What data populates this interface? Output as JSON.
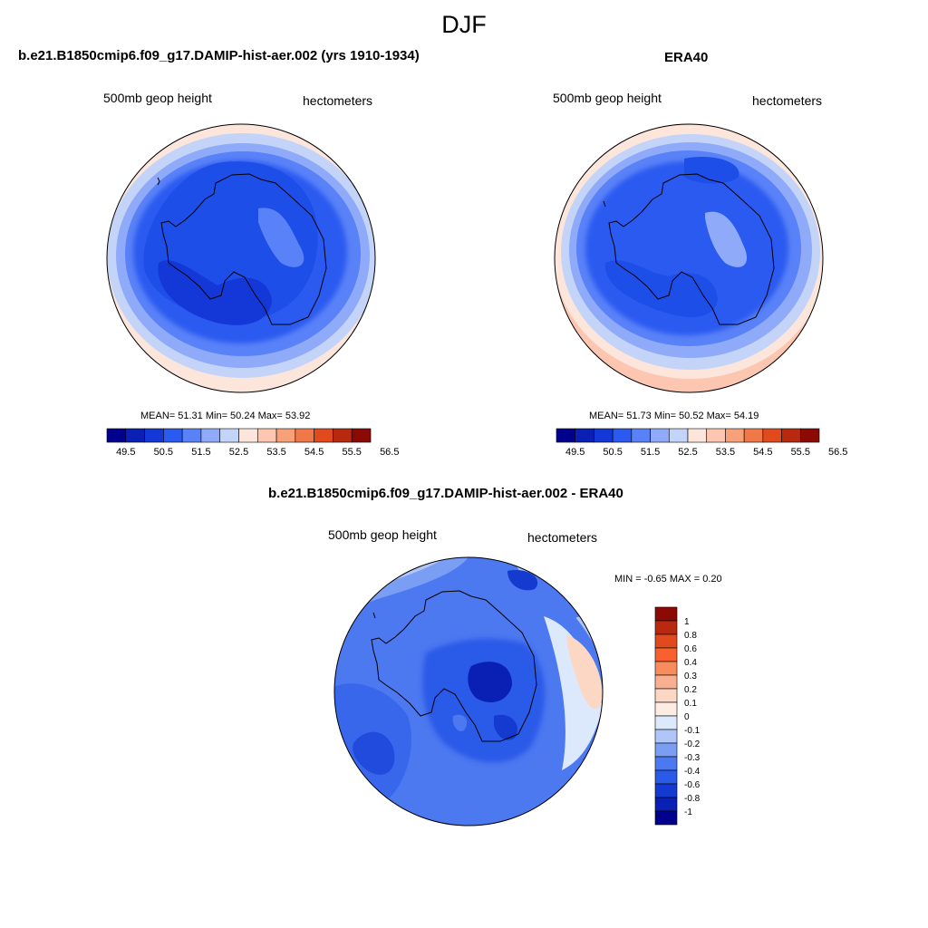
{
  "figure_title": "DJF",
  "panels": [
    {
      "title": "b.e21.B1850cmip6.f09_g17.DAMIP-hist-aer.002 (yrs 1910-1934)",
      "left_label": "500mb geop height",
      "right_label": "hectometers",
      "stats": "MEAN=  51.31  Min=  50.24  Max=  53.92",
      "mean": 51.31,
      "min": 50.24,
      "max": 53.92
    },
    {
      "title": "ERA40",
      "left_label": "500mb geop height",
      "right_label": "hectometers",
      "stats": "MEAN=  51.73  Min=  50.52  Max=  54.19",
      "mean": 51.73,
      "min": 50.52,
      "max": 54.19
    },
    {
      "title": "b.e21.B1850cmip6.f09_g17.DAMIP-hist-aer.002 - ERA40",
      "left_label": "500mb geop height",
      "right_label": "hectometers",
      "stats": "MIN =  -0.65 MAX =   0.20",
      "min": -0.65,
      "max": 0.2
    }
  ],
  "colorbar_abs": {
    "ticks": [
      "49.5",
      "50.5",
      "51.5",
      "52.5",
      "53.5",
      "54.5",
      "55.5",
      "56.5"
    ],
    "colors": [
      "#00008c",
      "#0a20b4",
      "#1438d8",
      "#2a5af0",
      "#5a82f8",
      "#8eaaf8",
      "#c4d4f8",
      "#fce6dc",
      "#fcc6b0",
      "#f8a078",
      "#f07848",
      "#e04a1c",
      "#b82a10",
      "#8c0a04"
    ]
  },
  "colorbar_diff": {
    "ticks": [
      "1",
      "0.8",
      "0.6",
      "0.4",
      "0.3",
      "0.2",
      "0.1",
      "0",
      "-0.1",
      "-0.2",
      "-0.3",
      "-0.4",
      "-0.6",
      "-0.8",
      "-1"
    ],
    "colors": [
      "#8c0a04",
      "#b82a10",
      "#e04a1c",
      "#f86030",
      "#f88c5c",
      "#f8b090",
      "#fcd8c4",
      "#fcece4",
      "#dce8fc",
      "#b0c6f8",
      "#7a9ef4",
      "#4c78f0",
      "#2a5ae8",
      "#143ad0",
      "#0a20b4",
      "#00008c"
    ]
  },
  "chart_data": [
    {
      "type": "heatmap",
      "title": "b.e21.B1850cmip6.f09_g17.DAMIP-hist-aer.002 (yrs 1910-1934)",
      "variable": "500mb geop height",
      "units": "hectometers",
      "projection": "south polar stereographic",
      "mean": 51.31,
      "min": 50.24,
      "max": 53.92,
      "contour_levels": [
        49.5,
        50,
        50.5,
        51,
        51.5,
        52,
        52.5,
        53,
        53.5,
        54,
        54.5,
        55,
        55.5,
        56,
        56.5
      ]
    },
    {
      "type": "heatmap",
      "title": "ERA40",
      "variable": "500mb geop height",
      "units": "hectometers",
      "projection": "south polar stereographic",
      "mean": 51.73,
      "min": 50.52,
      "max": 54.19,
      "contour_levels": [
        49.5,
        50,
        50.5,
        51,
        51.5,
        52,
        52.5,
        53,
        53.5,
        54,
        54.5,
        55,
        55.5,
        56,
        56.5
      ]
    },
    {
      "type": "heatmap",
      "title": "b.e21.B1850cmip6.f09_g17.DAMIP-hist-aer.002 - ERA40",
      "variable": "500mb geop height",
      "units": "hectometers",
      "projection": "south polar stereographic",
      "min": -0.65,
      "max": 0.2,
      "contour_levels": [
        -1,
        -0.8,
        -0.6,
        -0.4,
        -0.3,
        -0.2,
        -0.1,
        0,
        0.1,
        0.2,
        0.3,
        0.4,
        0.6,
        0.8,
        1
      ]
    }
  ]
}
